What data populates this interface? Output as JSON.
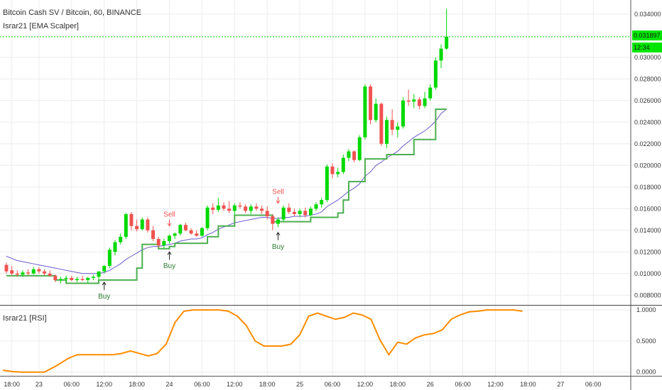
{
  "header": {
    "title": "Bitcoin Cash SV / Bitcoin, 60, BINANCE",
    "indicator": "Israr21 [EMA Scalper]",
    "rsi_indicator": "Israr21 [RSI]",
    "last_price": "0.031897",
    "countdown": "12:34"
  },
  "colors": {
    "up": "#00d900",
    "down": "#ef5350",
    "ema": "#6a5acd",
    "stop": "#4caf50",
    "rsi": "#ff8c00",
    "grid": "#ececec",
    "price_line": "#00d900"
  },
  "chart_data": [
    {
      "type": "candlestick",
      "title": "Bitcoin Cash SV / Bitcoin, 60, BINANCE",
      "y_ticks": [
        "0.034000",
        "0.032000",
        "0.030000",
        "0.028000",
        "0.026000",
        "0.024000",
        "0.022000",
        "0.020000",
        "0.018000",
        "0.016000",
        "0.014000",
        "0.012000",
        "0.010000",
        "0.008000"
      ],
      "y_tick_values": [
        0.034,
        0.032,
        0.03,
        0.028,
        0.026,
        0.024,
        0.022,
        0.02,
        0.018,
        0.016,
        0.014,
        0.012,
        0.01,
        0.008
      ],
      "ylim": [
        0.0071,
        0.0353
      ],
      "x_ticks": [
        "18:00",
        "23",
        "06:00",
        "12:00",
        "18:00",
        "24",
        "06:00",
        "12:00",
        "18:00",
        "25",
        "06:00",
        "12:00",
        "18:00",
        "26",
        "06:00",
        "12:00",
        "18:00",
        "27",
        "06:00"
      ],
      "x_tick_candle_index": [
        1,
        6,
        12,
        18,
        24,
        30,
        36,
        42,
        48,
        54,
        60,
        66,
        72,
        78,
        84,
        90,
        96,
        102,
        108
      ],
      "candles": [
        {
          "o": 0.0108,
          "h": 0.011,
          "l": 0.01,
          "c": 0.0102
        },
        {
          "o": 0.0103,
          "h": 0.0107,
          "l": 0.0098,
          "c": 0.01
        },
        {
          "o": 0.01,
          "h": 0.0103,
          "l": 0.0097,
          "c": 0.0099
        },
        {
          "o": 0.0099,
          "h": 0.0103,
          "l": 0.0097,
          "c": 0.0101
        },
        {
          "o": 0.0101,
          "h": 0.0104,
          "l": 0.0098,
          "c": 0.01
        },
        {
          "o": 0.01,
          "h": 0.0106,
          "l": 0.0099,
          "c": 0.0104
        },
        {
          "o": 0.0104,
          "h": 0.0106,
          "l": 0.01,
          "c": 0.0102
        },
        {
          "o": 0.0102,
          "h": 0.0104,
          "l": 0.0098,
          "c": 0.01
        },
        {
          "o": 0.01,
          "h": 0.0103,
          "l": 0.0097,
          "c": 0.0098
        },
        {
          "o": 0.0098,
          "h": 0.0099,
          "l": 0.0092,
          "c": 0.0094
        },
        {
          "o": 0.0094,
          "h": 0.0097,
          "l": 0.0091,
          "c": 0.0095
        },
        {
          "o": 0.0095,
          "h": 0.0098,
          "l": 0.0092,
          "c": 0.0096
        },
        {
          "o": 0.0096,
          "h": 0.0098,
          "l": 0.0093,
          "c": 0.0094
        },
        {
          "o": 0.0094,
          "h": 0.0097,
          "l": 0.0092,
          "c": 0.0095
        },
        {
          "o": 0.0095,
          "h": 0.0098,
          "l": 0.0093,
          "c": 0.0094
        },
        {
          "o": 0.0094,
          "h": 0.0097,
          "l": 0.0091,
          "c": 0.0096
        },
        {
          "o": 0.0096,
          "h": 0.0099,
          "l": 0.0094,
          "c": 0.0097
        },
        {
          "o": 0.0097,
          "h": 0.0102,
          "l": 0.0095,
          "c": 0.0102
        },
        {
          "o": 0.0102,
          "h": 0.0108,
          "l": 0.01,
          "c": 0.0107
        },
        {
          "o": 0.0107,
          "h": 0.0124,
          "l": 0.0105,
          "c": 0.0122
        },
        {
          "o": 0.012,
          "h": 0.0131,
          "l": 0.0117,
          "c": 0.0129
        },
        {
          "o": 0.0129,
          "h": 0.0137,
          "l": 0.0127,
          "c": 0.0134
        },
        {
          "o": 0.0134,
          "h": 0.0156,
          "l": 0.0132,
          "c": 0.0155
        },
        {
          "o": 0.0155,
          "h": 0.0157,
          "l": 0.014,
          "c": 0.0144
        },
        {
          "o": 0.0144,
          "h": 0.015,
          "l": 0.0139,
          "c": 0.0141
        },
        {
          "o": 0.0141,
          "h": 0.0152,
          "l": 0.014,
          "c": 0.015
        },
        {
          "o": 0.015,
          "h": 0.0152,
          "l": 0.0138,
          "c": 0.014
        },
        {
          "o": 0.014,
          "h": 0.0144,
          "l": 0.013,
          "c": 0.0132
        },
        {
          "o": 0.0132,
          "h": 0.0134,
          "l": 0.0124,
          "c": 0.0126
        },
        {
          "o": 0.0126,
          "h": 0.0132,
          "l": 0.0123,
          "c": 0.013
        },
        {
          "o": 0.013,
          "h": 0.0136,
          "l": 0.0128,
          "c": 0.0135
        },
        {
          "o": 0.0135,
          "h": 0.0138,
          "l": 0.0132,
          "c": 0.0137
        },
        {
          "o": 0.0137,
          "h": 0.0146,
          "l": 0.0135,
          "c": 0.0145
        },
        {
          "o": 0.0145,
          "h": 0.0147,
          "l": 0.0139,
          "c": 0.014
        },
        {
          "o": 0.014,
          "h": 0.0142,
          "l": 0.0136,
          "c": 0.0137
        },
        {
          "o": 0.0137,
          "h": 0.014,
          "l": 0.0134,
          "c": 0.0135
        },
        {
          "o": 0.0135,
          "h": 0.0143,
          "l": 0.0134,
          "c": 0.0142
        },
        {
          "o": 0.0142,
          "h": 0.0163,
          "l": 0.014,
          "c": 0.0161
        },
        {
          "o": 0.0161,
          "h": 0.0165,
          "l": 0.0155,
          "c": 0.0159
        },
        {
          "o": 0.0159,
          "h": 0.017,
          "l": 0.0157,
          "c": 0.0163
        },
        {
          "o": 0.0163,
          "h": 0.0166,
          "l": 0.0158,
          "c": 0.016
        },
        {
          "o": 0.016,
          "h": 0.0167,
          "l": 0.0156,
          "c": 0.0158
        },
        {
          "o": 0.0158,
          "h": 0.0165,
          "l": 0.0154,
          "c": 0.0163
        },
        {
          "o": 0.0163,
          "h": 0.0166,
          "l": 0.016,
          "c": 0.0162
        },
        {
          "o": 0.0162,
          "h": 0.0164,
          "l": 0.0156,
          "c": 0.0158
        },
        {
          "o": 0.0158,
          "h": 0.0164,
          "l": 0.0155,
          "c": 0.0162
        },
        {
          "o": 0.0162,
          "h": 0.0165,
          "l": 0.0158,
          "c": 0.016
        },
        {
          "o": 0.016,
          "h": 0.0163,
          "l": 0.0155,
          "c": 0.0158
        },
        {
          "o": 0.0158,
          "h": 0.0162,
          "l": 0.015,
          "c": 0.0153
        },
        {
          "o": 0.0153,
          "h": 0.0155,
          "l": 0.014,
          "c": 0.0146
        },
        {
          "o": 0.0146,
          "h": 0.0152,
          "l": 0.0143,
          "c": 0.015
        },
        {
          "o": 0.015,
          "h": 0.0163,
          "l": 0.0148,
          "c": 0.0161
        },
        {
          "o": 0.0161,
          "h": 0.0165,
          "l": 0.0155,
          "c": 0.0157
        },
        {
          "o": 0.0157,
          "h": 0.016,
          "l": 0.0153,
          "c": 0.0155
        },
        {
          "o": 0.0155,
          "h": 0.016,
          "l": 0.0152,
          "c": 0.0158
        },
        {
          "o": 0.0158,
          "h": 0.0161,
          "l": 0.0152,
          "c": 0.0154
        },
        {
          "o": 0.0154,
          "h": 0.0162,
          "l": 0.0153,
          "c": 0.016
        },
        {
          "o": 0.016,
          "h": 0.0166,
          "l": 0.0158,
          "c": 0.0164
        },
        {
          "o": 0.0164,
          "h": 0.017,
          "l": 0.0161,
          "c": 0.0168
        },
        {
          "o": 0.0168,
          "h": 0.0201,
          "l": 0.0166,
          "c": 0.0199
        },
        {
          "o": 0.0199,
          "h": 0.0202,
          "l": 0.0188,
          "c": 0.0192
        },
        {
          "o": 0.0192,
          "h": 0.0198,
          "l": 0.0189,
          "c": 0.0194
        },
        {
          "o": 0.0194,
          "h": 0.021,
          "l": 0.0192,
          "c": 0.0207
        },
        {
          "o": 0.0207,
          "h": 0.0215,
          "l": 0.0204,
          "c": 0.0213
        },
        {
          "o": 0.0213,
          "h": 0.0214,
          "l": 0.0203,
          "c": 0.0205
        },
        {
          "o": 0.0205,
          "h": 0.0228,
          "l": 0.0204,
          "c": 0.0226
        },
        {
          "o": 0.0226,
          "h": 0.0275,
          "l": 0.0224,
          "c": 0.0273
        },
        {
          "o": 0.0273,
          "h": 0.0275,
          "l": 0.0238,
          "c": 0.0242
        },
        {
          "o": 0.0242,
          "h": 0.0262,
          "l": 0.024,
          "c": 0.0257
        },
        {
          "o": 0.0257,
          "h": 0.0258,
          "l": 0.0218,
          "c": 0.022
        },
        {
          "o": 0.022,
          "h": 0.0245,
          "l": 0.0216,
          "c": 0.0242
        },
        {
          "o": 0.0242,
          "h": 0.0252,
          "l": 0.0228,
          "c": 0.0233
        },
        {
          "o": 0.0233,
          "h": 0.024,
          "l": 0.0226,
          "c": 0.0236
        },
        {
          "o": 0.0236,
          "h": 0.0263,
          "l": 0.0234,
          "c": 0.026
        },
        {
          "o": 0.026,
          "h": 0.027,
          "l": 0.0255,
          "c": 0.0259
        },
        {
          "o": 0.0259,
          "h": 0.0266,
          "l": 0.0253,
          "c": 0.0261
        },
        {
          "o": 0.0261,
          "h": 0.0263,
          "l": 0.0252,
          "c": 0.0255
        },
        {
          "o": 0.0255,
          "h": 0.0268,
          "l": 0.0253,
          "c": 0.0262
        },
        {
          "o": 0.0262,
          "h": 0.0275,
          "l": 0.026,
          "c": 0.0272
        },
        {
          "o": 0.0272,
          "h": 0.03,
          "l": 0.027,
          "c": 0.0297
        },
        {
          "o": 0.0297,
          "h": 0.0312,
          "l": 0.029,
          "c": 0.0308
        },
        {
          "o": 0.0308,
          "h": 0.0345,
          "l": 0.0307,
          "c": 0.0319
        }
      ],
      "ema": [
        0.0116,
        0.0114,
        0.0112,
        0.0111,
        0.011,
        0.0109,
        0.0108,
        0.0107,
        0.0106,
        0.0105,
        0.0104,
        0.0103,
        0.0102,
        0.0101,
        0.01,
        0.01,
        0.01,
        0.01,
        0.0101,
        0.0103,
        0.0106,
        0.0109,
        0.0113,
        0.0116,
        0.0119,
        0.0122,
        0.0124,
        0.0125,
        0.0125,
        0.0126,
        0.0127,
        0.0128,
        0.013,
        0.0131,
        0.0132,
        0.0132,
        0.0133,
        0.0136,
        0.0138,
        0.0141,
        0.0143,
        0.0145,
        0.0147,
        0.0148,
        0.0149,
        0.015,
        0.0151,
        0.0152,
        0.0152,
        0.0151,
        0.0151,
        0.0152,
        0.0152,
        0.0153,
        0.0153,
        0.0153,
        0.0154,
        0.0155,
        0.0157,
        0.0162,
        0.0165,
        0.0168,
        0.0172,
        0.0176,
        0.0179,
        0.0183,
        0.019,
        0.0194,
        0.02,
        0.0203,
        0.0207,
        0.021,
        0.0213,
        0.0218,
        0.0222,
        0.0226,
        0.0229,
        0.0232,
        0.0236,
        0.0241,
        0.0248,
        0.0252
      ],
      "stop": [
        0.0098,
        0.0098,
        0.0098,
        0.0098,
        0.0098,
        0.0098,
        0.0098,
        0.0098,
        0.0098,
        0.0094,
        0.0094,
        0.0091,
        0.0091,
        0.0091,
        0.0091,
        0.0091,
        0.0091,
        0.0094,
        0.0094,
        0.0094,
        0.0094,
        0.0094,
        0.0094,
        0.0094,
        0.0105,
        0.0127,
        0.0127,
        0.0127,
        0.0123,
        0.0123,
        0.0125,
        0.0128,
        0.0128,
        0.0128,
        0.0128,
        0.0128,
        0.0128,
        0.0134,
        0.0134,
        0.0144,
        0.0144,
        0.0144,
        0.0154,
        0.0154,
        0.0154,
        0.0154,
        0.0154,
        0.0154,
        0.0154,
        0.0148,
        0.0148,
        0.0148,
        0.0148,
        0.0148,
        0.0148,
        0.0148,
        0.0152,
        0.0152,
        0.0152,
        0.0152,
        0.0152,
        0.0156,
        0.0168,
        0.0185,
        0.0185,
        0.0185,
        0.0206,
        0.0206,
        0.0206,
        0.0206,
        0.021,
        0.021,
        0.021,
        0.021,
        0.021,
        0.0224,
        0.0224,
        0.0224,
        0.0224,
        0.0252,
        0.0252,
        0.0252
      ],
      "signals": [
        {
          "label": "Buy",
          "type": "buy",
          "index": 18,
          "price": 0.0094
        },
        {
          "label": "Sell",
          "type": "sell",
          "index": 30,
          "price": 0.0142
        },
        {
          "label": "Buy",
          "type": "buy",
          "index": 30,
          "price": 0.0122
        },
        {
          "label": "Sell",
          "type": "sell",
          "index": 50,
          "price": 0.0163
        },
        {
          "label": "Buy",
          "type": "buy",
          "index": 50,
          "price": 0.014
        }
      ],
      "last_price": 0.031897
    },
    {
      "type": "line",
      "title": "Israr21 [RSI]",
      "y_ticks": [
        "1.0000",
        "0.5000",
        "0.0000"
      ],
      "y_tick_values": [
        1.0,
        0.5,
        0.0
      ],
      "ylim": [
        -0.06,
        1.07
      ],
      "x": [
        0,
        3,
        6,
        10,
        14,
        18,
        22,
        25,
        28,
        31,
        34,
        37,
        40,
        43,
        46,
        49,
        52,
        55,
        58,
        61,
        64,
        67,
        70,
        73,
        76,
        79,
        82,
        85,
        88,
        91,
        94,
        97,
        100,
        103,
        106,
        109,
        112,
        115,
        118,
        121,
        124,
        127,
        130,
        133,
        136,
        139,
        142,
        145,
        148,
        151,
        154,
        157,
        160,
        163,
        166,
        169,
        172,
        175
      ],
      "values": [
        0.03,
        0.01,
        0.0,
        0.0,
        0.0,
        0.1,
        0.22,
        0.28,
        0.28,
        0.28,
        0.28,
        0.28,
        0.3,
        0.34,
        0.3,
        0.26,
        0.3,
        0.45,
        0.8,
        0.98,
        1.0,
        1.0,
        1.0,
        1.0,
        0.98,
        0.9,
        0.75,
        0.5,
        0.42,
        0.42,
        0.42,
        0.45,
        0.6,
        0.9,
        0.95,
        0.9,
        0.85,
        0.88,
        0.95,
        0.92,
        0.85,
        0.52,
        0.28,
        0.48,
        0.45,
        0.55,
        0.6,
        0.62,
        0.68,
        0.85,
        0.92,
        0.97,
        0.98,
        1.0,
        1.0,
        1.0,
        1.0,
        0.98
      ]
    }
  ]
}
